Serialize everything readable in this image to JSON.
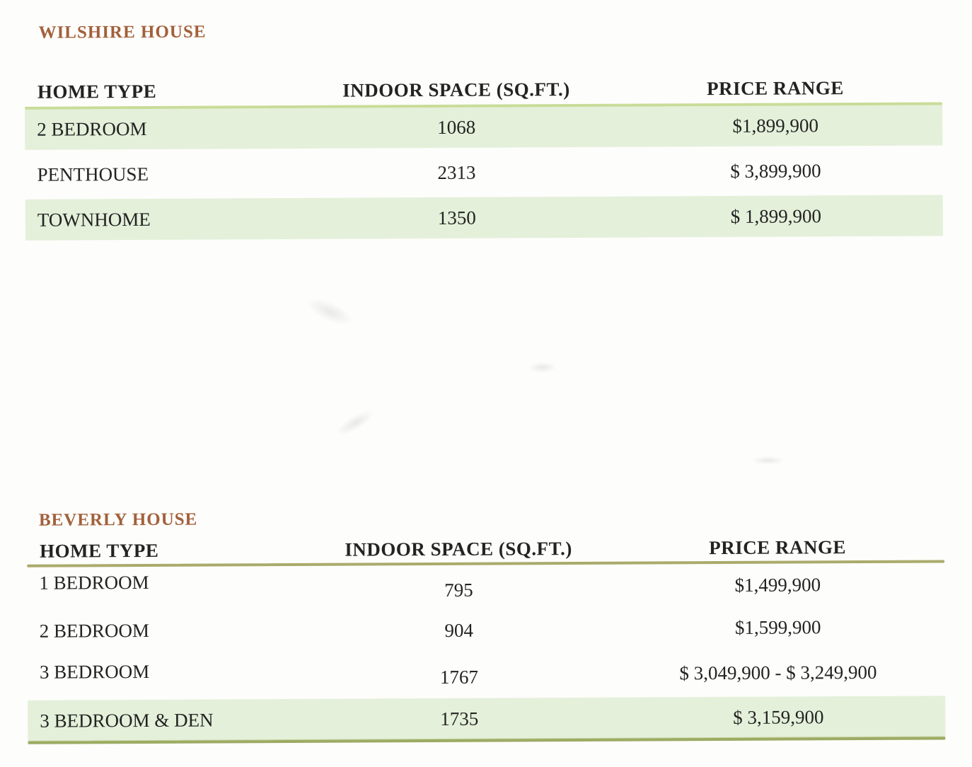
{
  "colors": {
    "title_brown": "#a2603a",
    "highlight_row_green": "#e4f0da",
    "header_rule_light_green": "#c9dc98",
    "header_rule_olive": "#aaab6c",
    "bottom_rule_olive": "#9dab64",
    "text": "#232323"
  },
  "tables": [
    {
      "title": "WILSHIRE HOUSE",
      "columns": [
        "HOME TYPE",
        "INDOOR SPACE (SQ.FT.)",
        "PRICE RANGE"
      ],
      "rows": [
        {
          "home_type": "2 BEDROOM",
          "indoor_space": "1068",
          "price_range": "$1,899,900",
          "highlight": true
        },
        {
          "home_type": "PENTHOUSE",
          "indoor_space": "2313",
          "price_range": "$ 3,899,900",
          "highlight": false
        },
        {
          "home_type": "TOWNHOME",
          "indoor_space": "1350",
          "price_range": "$ 1,899,900",
          "highlight": true
        }
      ]
    },
    {
      "title": "BEVERLY HOUSE",
      "columns": [
        "HOME TYPE",
        "INDOOR SPACE (SQ.FT.)",
        "PRICE RANGE"
      ],
      "rows": [
        {
          "home_type": "1 BEDROOM",
          "indoor_space": "795",
          "price_range": "$1,499,900",
          "highlight": false
        },
        {
          "home_type": "2 BEDROOM",
          "indoor_space": "904",
          "price_range": "$1,599,900",
          "highlight": false
        },
        {
          "home_type": "3 BEDROOM",
          "indoor_space": "1767",
          "price_range": "$ 3,049,900 - $ 3,249,900",
          "highlight": false
        },
        {
          "home_type": "3 BEDROOM & DEN",
          "indoor_space": "1735",
          "price_range": "$ 3,159,900",
          "highlight": true
        }
      ]
    }
  ]
}
